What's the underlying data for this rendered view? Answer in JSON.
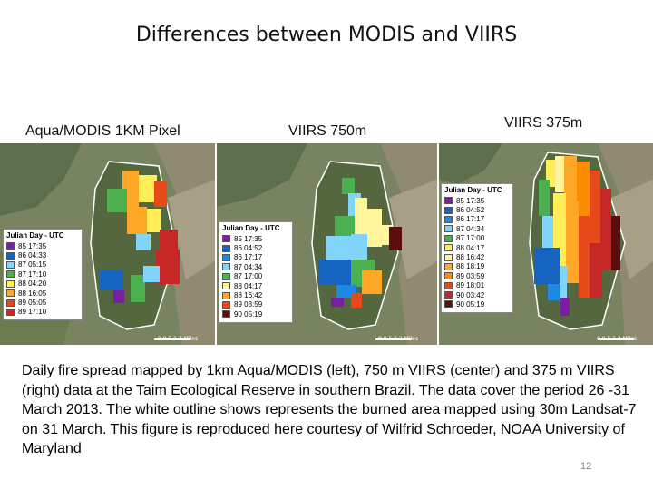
{
  "title": "Differences between MODIS and VIIRS",
  "panels": [
    {
      "label": "Aqua/MODIS  1KM Pixel",
      "legend": {
        "title": "Julian Day - UTC",
        "items": [
          {
            "label": "85 17:35",
            "color": "#7b1fa2"
          },
          {
            "label": "86 04:33",
            "color": "#1565c0"
          },
          {
            "label": "87 05:15",
            "color": "#81d4fa"
          },
          {
            "label": "87 17:10",
            "color": "#4caf50"
          },
          {
            "label": "88 04:20",
            "color": "#ffee58"
          },
          {
            "label": "88 16:05",
            "color": "#ffa726"
          },
          {
            "label": "89 05:05",
            "color": "#e64a19"
          },
          {
            "label": "89 17:10",
            "color": "#c62828"
          }
        ]
      },
      "scale": "0  0.5  1        2 Miles"
    },
    {
      "label": "VIIRS 750m",
      "legend": {
        "title": "Julian Day - UTC",
        "items": [
          {
            "label": "85 17:35",
            "color": "#7b1fa2"
          },
          {
            "label": "86 04:52",
            "color": "#1565c0"
          },
          {
            "label": "86 17:17",
            "color": "#1e88e5"
          },
          {
            "label": "87 04:34",
            "color": "#81d4fa"
          },
          {
            "label": "87 17:00",
            "color": "#4caf50"
          },
          {
            "label": "88 04:17",
            "color": "#fff59d"
          },
          {
            "label": "88 16:42",
            "color": "#ffa726"
          },
          {
            "label": "89 03:59",
            "color": "#e64a19"
          },
          {
            "label": "90 05:19",
            "color": "#5d0d0d"
          }
        ]
      },
      "scale": "0  0.5  1        2 Miles"
    },
    {
      "label": "VIIRS 375m",
      "legend": {
        "title": "Julian Day - UTC",
        "items": [
          {
            "label": "85 17:35",
            "color": "#7b1fa2"
          },
          {
            "label": "86 04:52",
            "color": "#1565c0"
          },
          {
            "label": "86 17:17",
            "color": "#1e88e5"
          },
          {
            "label": "87 04:34",
            "color": "#81d4fa"
          },
          {
            "label": "87 17:00",
            "color": "#4caf50"
          },
          {
            "label": "88 04:17",
            "color": "#ffee58"
          },
          {
            "label": "88 16:42",
            "color": "#fff59d"
          },
          {
            "label": "88 18:19",
            "color": "#ffa726"
          },
          {
            "label": "89 03:59",
            "color": "#fb8c00"
          },
          {
            "label": "89 18:01",
            "color": "#e64a19"
          },
          {
            "label": "90 03:42",
            "color": "#c62828"
          },
          {
            "label": "90 05:19",
            "color": "#5d0d0d"
          }
        ]
      },
      "scale": "0  0.5  1        2 Miles"
    }
  ],
  "caption": "Daily fire spread mapped by 1km Aqua/MODIS (left), 750 m VIIRS (center) and 375 m VIIRS (right) data at the Taim Ecological Reserve in southern Brazil. The data cover the period 26 -31 March 2013. The white outline shows represents the burned area mapped using 30m Landsat-7 on 31 March. This figure is reproduced here courtesy of Wilfrid Schroeder, NOAA University of Maryland",
  "page_number": "12"
}
